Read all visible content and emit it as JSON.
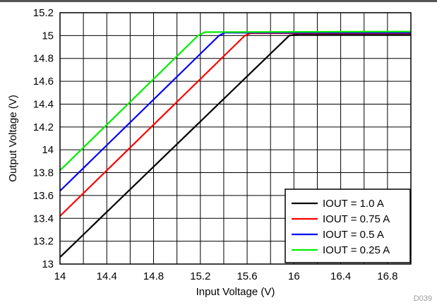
{
  "chart_data": {
    "type": "line",
    "xlabel": "Input Voltage (V)",
    "ylabel": "Output Voltage (V)",
    "xlim": [
      14,
      17
    ],
    "ylim": [
      13,
      15.2
    ],
    "xticks": [
      "14",
      "14.4",
      "14.8",
      "15.2",
      "15.6",
      "16",
      "16.4",
      "16.8"
    ],
    "yticks": [
      "13",
      "13.2",
      "13.4",
      "13.6",
      "13.8",
      "14",
      "14.2",
      "14.4",
      "14.6",
      "14.8",
      "15",
      "15.2"
    ],
    "grid": true,
    "legend_position": "bottom-right",
    "figure_id": "D039",
    "series": [
      {
        "name": "IOUT = 1.0 A",
        "color": "#000000",
        "x": [
          14,
          15.96,
          16.04,
          17
        ],
        "y": [
          13.06,
          15.0,
          15.01,
          15.01
        ]
      },
      {
        "name": "IOUT = 0.75 A",
        "color": "#ff0000",
        "x": [
          14,
          15.58,
          15.63,
          17
        ],
        "y": [
          13.42,
          15.0,
          15.02,
          15.02
        ]
      },
      {
        "name": "IOUT = 0.5 A",
        "color": "#0000ff",
        "x": [
          14,
          15.36,
          15.41,
          17
        ],
        "y": [
          13.64,
          15.0,
          15.025,
          15.025
        ]
      },
      {
        "name": "IOUT = 0.25 A",
        "color": "#00ee00",
        "x": [
          14,
          15.18,
          15.24,
          17
        ],
        "y": [
          13.82,
          15.0,
          15.03,
          15.035
        ]
      }
    ]
  }
}
